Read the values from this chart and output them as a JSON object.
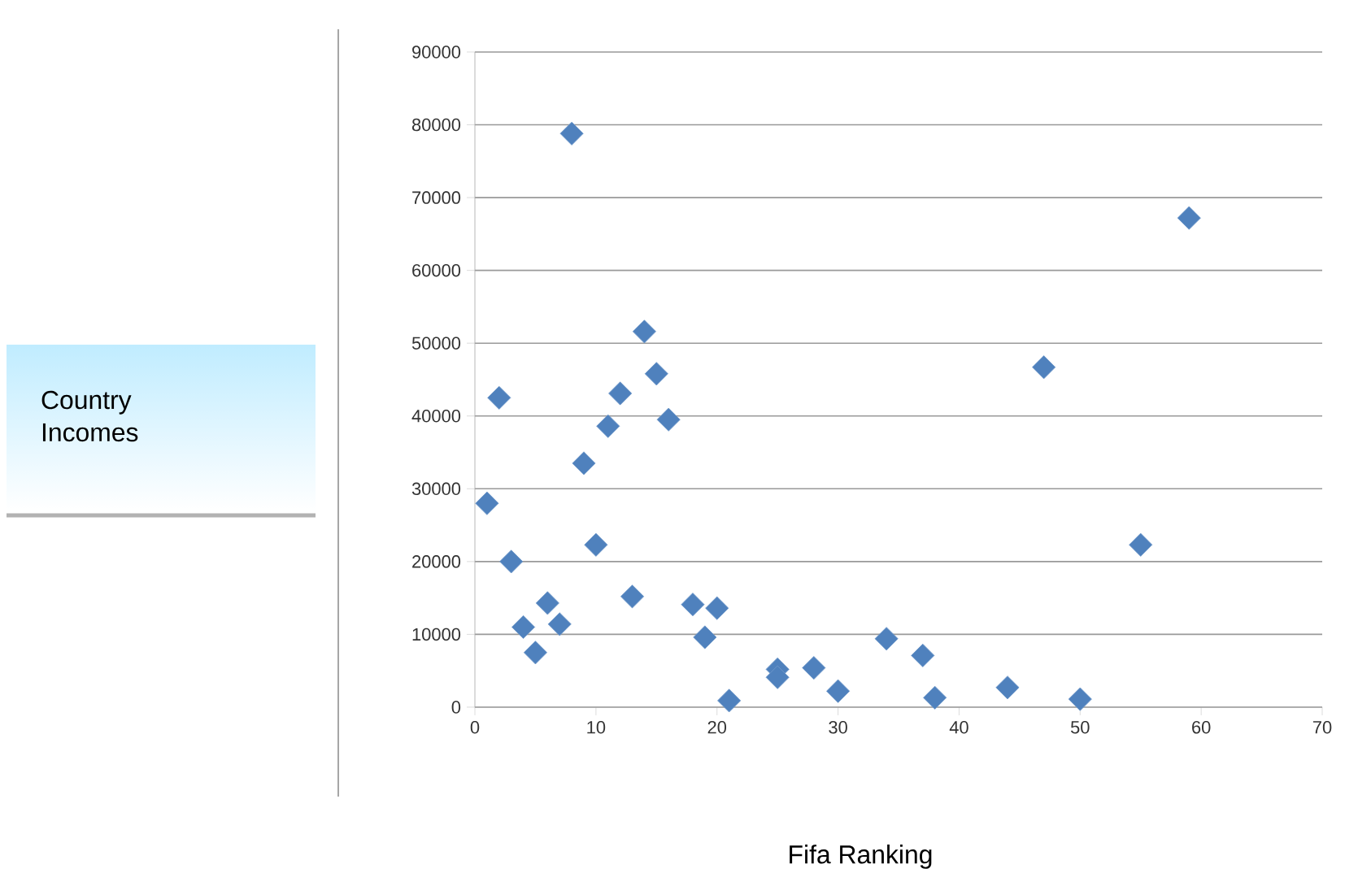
{
  "chart_data": {
    "type": "scatter",
    "xlabel": "Fifa Ranking",
    "annotations": [
      "Country Incomes"
    ],
    "marker": "diamond",
    "grid": "y",
    "color": "#4f81bd",
    "xlim": [
      0,
      70
    ],
    "xticks": [
      0,
      10,
      20,
      30,
      40,
      50,
      60,
      70
    ],
    "ylim": [
      0,
      90000
    ],
    "yticks": [
      0,
      10000,
      20000,
      30000,
      40000,
      50000,
      60000,
      70000,
      80000,
      90000
    ],
    "x": [
      1,
      2,
      3,
      4,
      5,
      6,
      7,
      8,
      9,
      10,
      11,
      12,
      13,
      14,
      15,
      16,
      18,
      19,
      20,
      21,
      25,
      25,
      28,
      30,
      34,
      37,
      38,
      44,
      47,
      50,
      55,
      59
    ],
    "values": [
      28000,
      42500,
      20000,
      11000,
      7500,
      14300,
      11400,
      78800,
      33500,
      22300,
      38600,
      43100,
      15200,
      51600,
      45800,
      39500,
      14100,
      9600,
      13600,
      900,
      5200,
      4100,
      5400,
      2200,
      9400,
      7100,
      1300,
      2700,
      46700,
      1100,
      22300,
      67200
    ]
  }
}
